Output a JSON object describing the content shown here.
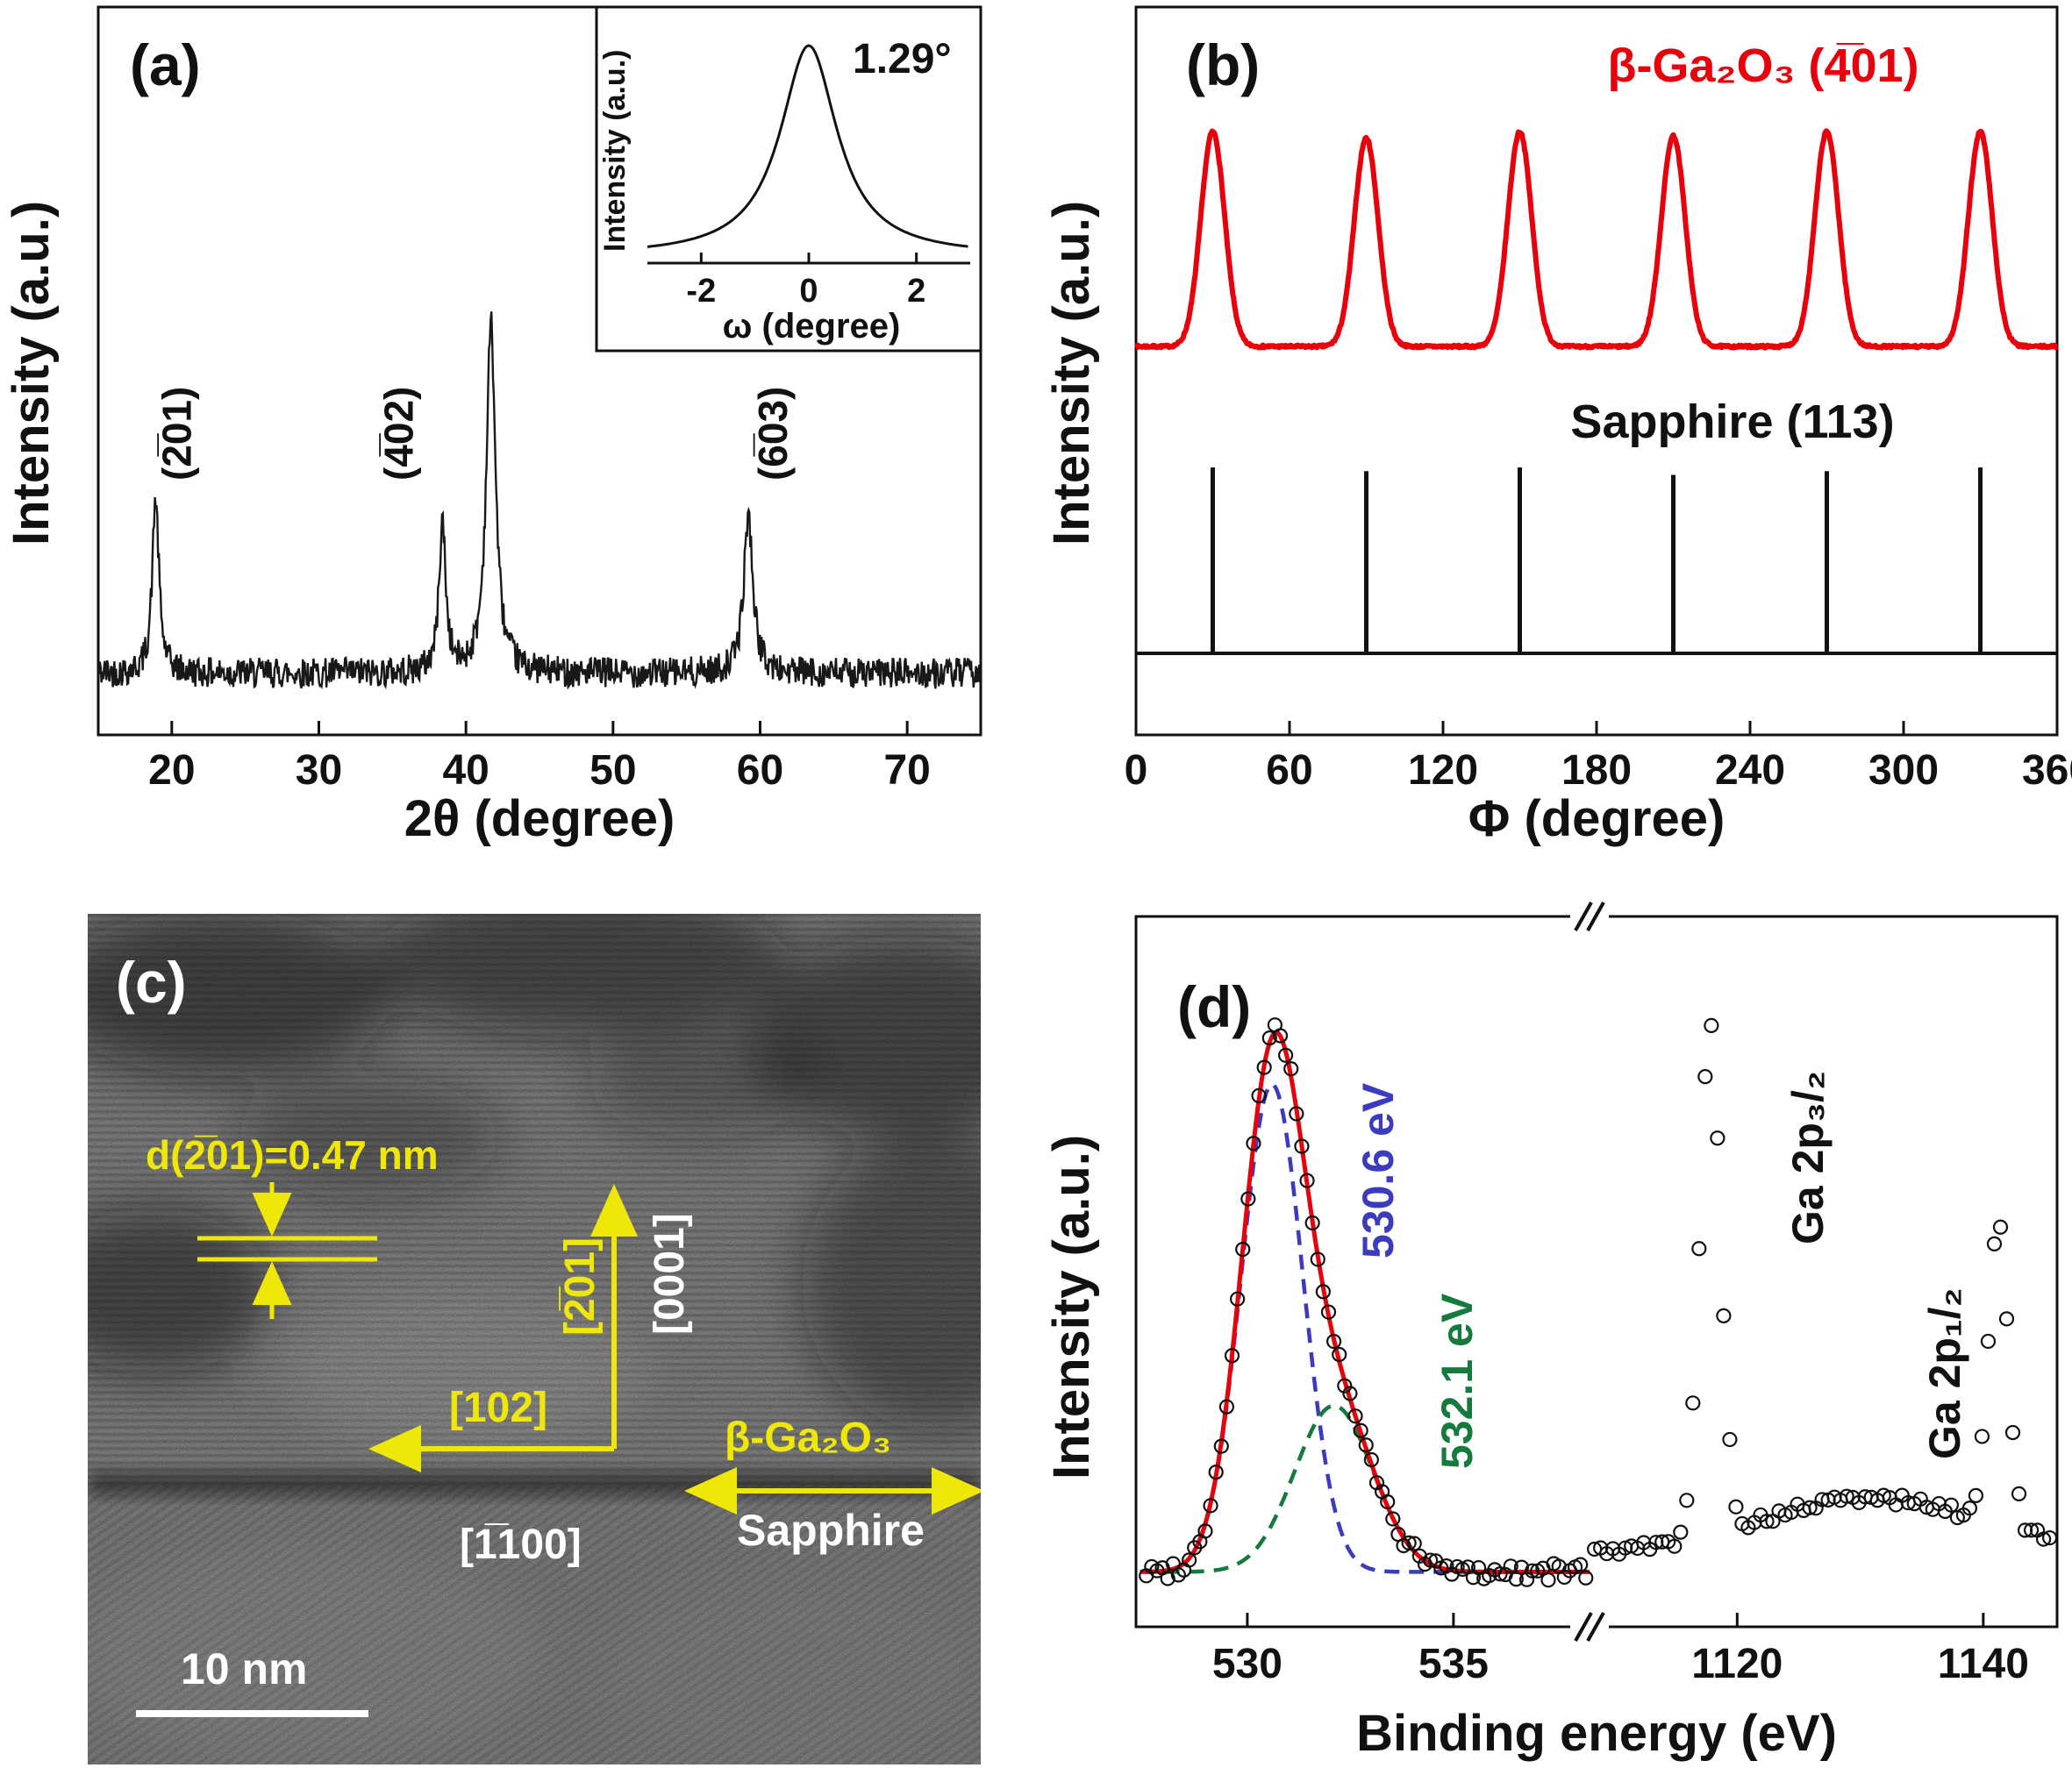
{
  "figure": {
    "background": "#ffffff"
  },
  "chart_data": [
    {
      "id": "xrd-2theta",
      "type": "line",
      "panel": "(a)",
      "xlabel": "2θ (degree)",
      "ylabel": "Intensity (a.u.)",
      "xlim": [
        15,
        75
      ],
      "xticks": [
        20,
        30,
        40,
        50,
        60,
        70
      ],
      "noise_base": 0.12,
      "noise_amp": 0.07,
      "line_color": "#181818",
      "peaks": [
        {
          "x": 18.9,
          "height": 0.4,
          "fwhm": 0.55,
          "label": "(2̅01)",
          "label_dx": 40
        },
        {
          "x": 38.4,
          "height": 0.34,
          "fwhm": 0.55,
          "label": "(4̅02)",
          "label_dx": -34
        },
        {
          "x": 41.7,
          "height": 0.8,
          "fwhm": 0.75,
          "label": "",
          "label_dx": 0
        },
        {
          "x": 59.2,
          "height": 0.36,
          "fwhm": 0.75,
          "label": "(6̅03)",
          "label_dx": 44
        }
      ]
    },
    {
      "id": "rocking-curve-inset",
      "type": "line",
      "xlabel": "ω (degree)",
      "ylabel": "Intensity (a.u.)",
      "xlim": [
        -3,
        3
      ],
      "xticks": [
        -2,
        0,
        2
      ],
      "center": 0,
      "fwhm": 1.29,
      "annotation": "1.29°"
    },
    {
      "id": "phi-scan",
      "type": "line",
      "panel": "(b)",
      "xlabel": "Φ (degree)",
      "ylabel": "Intensity (a.u.)",
      "xlim": [
        0,
        360
      ],
      "xticks": [
        0,
        60,
        120,
        180,
        240,
        300,
        360
      ],
      "series": [
        {
          "name": "β-Ga₂O₃ (4̅01)",
          "color": "#e8000b",
          "fwhm": 11,
          "peak_positions": [
            30,
            90,
            150,
            210,
            270,
            330
          ],
          "peak_heights": [
            1,
            0.97,
            1,
            0.98,
            1,
            1
          ]
        },
        {
          "name": "Sapphire (113)",
          "color": "#111111",
          "style": "impulse",
          "peak_positions": [
            30,
            90,
            150,
            210,
            270,
            330
          ],
          "peak_heights": [
            1,
            0.98,
            1,
            0.96,
            0.98,
            1
          ]
        }
      ]
    },
    {
      "id": "xps",
      "type": "scatter",
      "panel": "(d)",
      "xlabel": "Binding energy (eV)",
      "ylabel": "Intensity (a.u.)",
      "axis_break": true,
      "segments": [
        {
          "xlim": [
            527.3,
            538.3
          ],
          "xticks": [
            530,
            535
          ]
        },
        {
          "xlim": [
            1108,
            1146
          ],
          "xticks": [
            1120,
            1140
          ]
        }
      ],
      "o1s": {
        "envelope_color": "#e8000b",
        "components": [
          {
            "center": 530.6,
            "sigma": 0.75,
            "height": 0.88,
            "color": "#3b3bc0",
            "label": "530.6 eV"
          },
          {
            "center": 532.1,
            "sigma": 0.95,
            "height": 0.3,
            "color": "#157a3e",
            "label": "532.1 eV"
          }
        ]
      },
      "ga2p": {
        "base": 0.045,
        "background": {
          "center": 1131,
          "sigma": 9,
          "height": 0.1
        },
        "peaks": [
          {
            "center": 1117.8,
            "sigma": 0.85,
            "height": 0.92,
            "label": "Ga 2p₃/₂"
          },
          {
            "center": 1141.2,
            "sigma": 0.8,
            "height": 0.55,
            "label": "Ga 2p₁/₂"
          }
        ]
      }
    }
  ],
  "tem": {
    "panel": "(c)",
    "d_spacing_label": "d(2̅01)=0.47 nm",
    "dir_201": "[2̅01]",
    "dir_102": "[102]",
    "dir_0001": "[0001]",
    "dir_1100": "[1̅100]",
    "film_label": "β-Ga₂O₃",
    "substrate_label": "Sapphire",
    "scale_bar": "10 nm",
    "film_label_color": "#f0e70a",
    "substrate_label_color": "#ffffff"
  }
}
